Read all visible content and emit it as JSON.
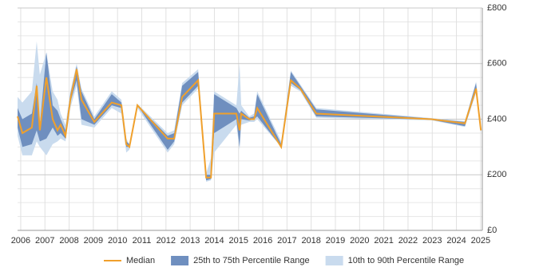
{
  "chart_data": {
    "type": "range_line",
    "x": [
      2005.87,
      2006.07,
      2006.46,
      2006.66,
      2006.79,
      2007.06,
      2007.32,
      2007.52,
      2007.65,
      2007.85,
      2008.05,
      2008.31,
      2008.51,
      2009.04,
      2009.76,
      2010.16,
      2010.36,
      2010.49,
      2010.82,
      2012.07,
      2012.34,
      2012.67,
      2013.33,
      2013.66,
      2013.86,
      2013.99,
      2014.91,
      2015.04,
      2015.11,
      2015.44,
      2015.64,
      2015.77,
      2016.76,
      2017.16,
      2017.55,
      2018.21,
      2022.96,
      2024.35,
      2024.81,
      2025.01
    ],
    "series": [
      {
        "name": "Median",
        "color": "#f0a02c",
        "values": [
          410,
          350,
          370,
          520,
          360,
          550,
          400,
          360,
          380,
          340,
          470,
          580,
          470,
          390,
          460,
          450,
          310,
          300,
          450,
          330,
          330,
          480,
          540,
          190,
          190,
          420,
          420,
          360,
          420,
          400,
          400,
          440,
          300,
          540,
          510,
          420,
          400,
          385,
          510,
          360
        ]
      },
      {
        "name": "25th to 75th Percentile Range",
        "color": "#6f8fbf",
        "low": [
          370,
          300,
          310,
          360,
          320,
          330,
          370,
          340,
          350,
          330,
          460,
          540,
          400,
          380,
          450,
          440,
          300,
          300,
          450,
          290,
          320,
          460,
          520,
          180,
          185,
          350,
          400,
          300,
          400,
          395,
          400,
          410,
          300,
          530,
          505,
          410,
          398,
          375,
          500,
          355
        ],
        "high": [
          440,
          400,
          420,
          530,
          380,
          640,
          450,
          430,
          400,
          360,
          490,
          590,
          500,
          400,
          490,
          460,
          320,
          310,
          450,
          340,
          350,
          520,
          570,
          200,
          200,
          490,
          440,
          420,
          430,
          405,
          410,
          490,
          310,
          570,
          520,
          435,
          402,
          390,
          530,
          365
        ]
      },
      {
        "name": "10th to 90th Percentile Range",
        "color": "#c9dbee",
        "low": [
          340,
          270,
          270,
          320,
          300,
          270,
          310,
          320,
          330,
          320,
          440,
          520,
          380,
          370,
          440,
          420,
          280,
          290,
          440,
          280,
          310,
          450,
          510,
          175,
          180,
          280,
          380,
          290,
          380,
          390,
          390,
          400,
          300,
          520,
          500,
          405,
          396,
          372,
          495,
          350
        ],
        "high": [
          480,
          460,
          500,
          680,
          560,
          640,
          500,
          470,
          420,
          380,
          500,
          600,
          510,
          410,
          500,
          470,
          330,
          310,
          455,
          350,
          360,
          530,
          580,
          205,
          260,
          500,
          450,
          600,
          450,
          410,
          420,
          500,
          320,
          575,
          525,
          440,
          404,
          393,
          535,
          370
        ]
      }
    ],
    "xlim": [
      2005.87,
      2025.07
    ],
    "xticks": [
      2006,
      2007,
      2008,
      2009,
      2010,
      2011,
      2012,
      2013,
      2014,
      2015,
      2016,
      2017,
      2018,
      2019,
      2020,
      2021,
      2022,
      2023,
      2024,
      2025
    ],
    "ylim": [
      0,
      800
    ],
    "yticks": [
      {
        "value": 0,
        "label": "£0"
      },
      {
        "value": 200,
        "label": "£200"
      },
      {
        "value": 400,
        "label": "£400"
      },
      {
        "value": 600,
        "label": "£600"
      },
      {
        "value": 800,
        "label": "£800"
      }
    ],
    "ygrid": [
      50,
      100,
      150,
      250,
      300,
      350,
      450,
      500,
      550,
      650,
      700,
      750
    ],
    "grid": true,
    "legend": "bottom"
  }
}
